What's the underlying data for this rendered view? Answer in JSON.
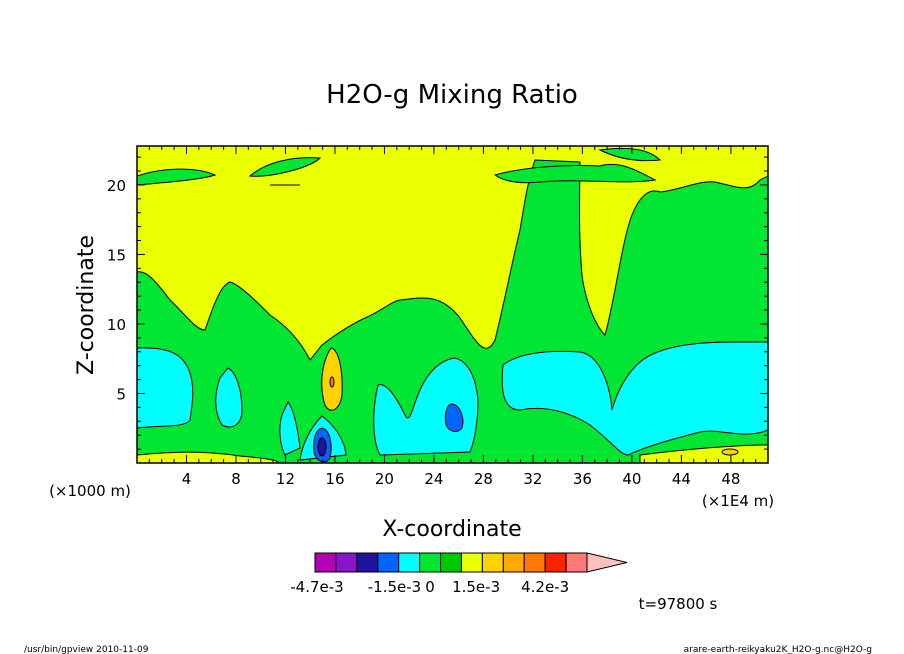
{
  "chart_data": {
    "type": "heatmap",
    "title": "H2O-g Mixing Ratio",
    "xlabel": "X-coordinate",
    "ylabel": "Z-coordinate",
    "x_unit_left": "(×1000 m)",
    "x_unit_right": "(×1E4 m)",
    "xlim": [
      0,
      51
    ],
    "ylim": [
      0,
      22.8
    ],
    "xticks": [
      4,
      8,
      12,
      16,
      20,
      24,
      28,
      32,
      36,
      40,
      44,
      48
    ],
    "yticks": [
      5,
      10,
      15,
      20
    ],
    "colorbar": {
      "levels": [
        "-4.7e-3",
        "-1.5e-3",
        "0",
        "1.5e-3",
        "4.2e-3"
      ],
      "colors": [
        "#b400b4",
        "#8c14c8",
        "#1e14a0",
        "#0064ff",
        "#00ffff",
        "#00e633",
        "#00c800",
        "#eaff00",
        "#ffd200",
        "#ffaa00",
        "#ff7800",
        "#ff2200",
        "#ff7878",
        "#ffc0c0"
      ]
    },
    "time_label": "t=97800 s"
  },
  "footer": {
    "left": "/usr/bin/gpview   2010-11-09",
    "right": "arare-earth-reikyaku2K_H2O-g.nc@H2O-g"
  }
}
